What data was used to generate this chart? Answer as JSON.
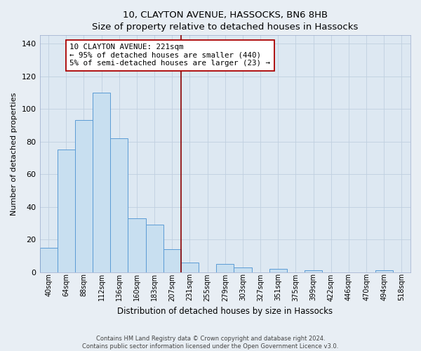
{
  "title": "10, CLAYTON AVENUE, HASSOCKS, BN6 8HB",
  "subtitle": "Size of property relative to detached houses in Hassocks",
  "xlabel": "Distribution of detached houses by size in Hassocks",
  "ylabel": "Number of detached properties",
  "bar_labels": [
    "40sqm",
    "64sqm",
    "88sqm",
    "112sqm",
    "136sqm",
    "160sqm",
    "183sqm",
    "207sqm",
    "231sqm",
    "255sqm",
    "279sqm",
    "303sqm",
    "327sqm",
    "351sqm",
    "375sqm",
    "399sqm",
    "422sqm",
    "446sqm",
    "470sqm",
    "494sqm",
    "518sqm"
  ],
  "bar_values": [
    15,
    75,
    93,
    110,
    82,
    33,
    29,
    14,
    6,
    0,
    5,
    3,
    0,
    2,
    0,
    1,
    0,
    0,
    0,
    1,
    0
  ],
  "bar_color": "#c8dff0",
  "bar_edge_color": "#5b9bd5",
  "vline_color": "#8b0000",
  "annotation_text": "10 CLAYTON AVENUE: 221sqm\n← 95% of detached houses are smaller (440)\n5% of semi-detached houses are larger (23) →",
  "annotation_box_edge_color": "#aa0000",
  "ylim": [
    0,
    145
  ],
  "yticks": [
    0,
    20,
    40,
    60,
    80,
    100,
    120,
    140
  ],
  "footer_line1": "Contains HM Land Registry data © Crown copyright and database right 2024.",
  "footer_line2": "Contains public sector information licensed under the Open Government Licence v3.0.",
  "bg_color": "#e8eef4",
  "plot_bg_color": "#dde8f2",
  "grid_color": "#c0cfe0"
}
